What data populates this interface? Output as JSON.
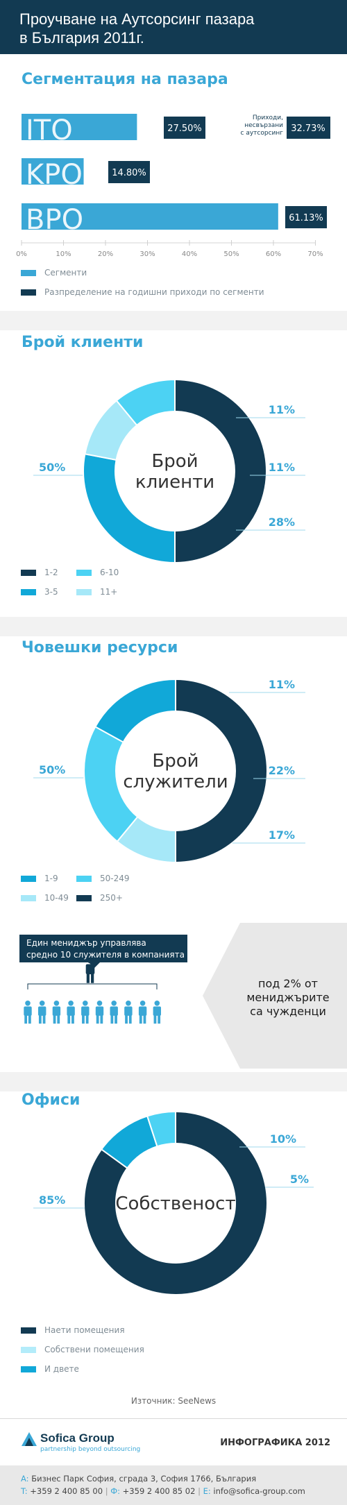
{
  "header": {
    "title_line1": "Проучване на Аутсорсинг пазара",
    "title_line2": "в България 2011г."
  },
  "segmentation": {
    "title": "Сегментация на пазара",
    "side_note": [
      "Приходи,",
      "несвързани",
      "с аутсорсинг"
    ],
    "legend": [
      "Сегменти",
      "Разпределение на годишни приходи по сегменти"
    ]
  },
  "clients": {
    "title": "Брой клиенти",
    "center": [
      "Брой",
      "клиенти"
    ],
    "legend": [
      "1-2",
      "6-10",
      "3-5",
      "11+"
    ]
  },
  "hr": {
    "title": "Човешки ресурси",
    "center": [
      "Брой",
      "служители"
    ],
    "legend": [
      "1-9",
      "50-249",
      "10-49",
      "250+"
    ]
  },
  "managers": {
    "box_line1": "Един мениджър управлява",
    "box_line2": "средно 10 служителя в компанията",
    "foreign_line1": "под 2% от",
    "foreign_line2": "мениджърите",
    "foreign_line3": "са чужденци"
  },
  "offices": {
    "title": "Офиси",
    "center": "Собственост",
    "legend": [
      "Наети помещения",
      "Собствени помещения",
      "И двете"
    ]
  },
  "source": "Източник:  SeeNews",
  "footer": {
    "logo_name": "Sofica Group",
    "logo_tagline": "partnership beyond outsourcing",
    "infographic": "ИНФОГРАФИКА 2012",
    "addr_label": "A:",
    "address": "Бизнес Парк София, сграда 3, София 1766, България",
    "t_label": "T:",
    "phone": "+359 2 400 85 00",
    "f_label": "Ф:",
    "fax": "+359 2 400 85 02",
    "e_label": "E:",
    "email": "info@sofica-group.com"
  },
  "colors": {
    "navy": "#123a52",
    "blue": "#3aa7d6",
    "teal": "#11a8d8",
    "cyan": "#4cd2f3",
    "light": "#a6e8f8",
    "pale": "#b3ecfa"
  },
  "chart_data": [
    {
      "type": "bar",
      "orientation": "horizontal",
      "categories": [
        "ITO",
        "KPO",
        "BPO"
      ],
      "series": [
        {
          "name": "Сегменти",
          "values": [
            27.5,
            14.8,
            61.13
          ]
        },
        {
          "name": "Разпределение на годишни приходи по сегменти",
          "values": [
            27.5,
            14.8,
            61.13
          ]
        }
      ],
      "data_labels": [
        "27.50%",
        "14.80%",
        "61.13%"
      ],
      "annotation": {
        "text": "Приходи, несвързани с аутсорсинг",
        "value": 32.73,
        "label": "32.73%"
      },
      "xlim": [
        0,
        70
      ],
      "xticks": [
        "0%",
        "10%",
        "20%",
        "30%",
        "40%",
        "50%",
        "60%",
        "70%"
      ]
    },
    {
      "type": "pie",
      "title": "Брой клиенти",
      "slices": [
        {
          "label": "1-2",
          "value": 50,
          "text": "50%",
          "color": "#123a52"
        },
        {
          "label": "3-5",
          "value": 28,
          "text": "28%",
          "color": "#11a8d8"
        },
        {
          "label": "11+",
          "value": 11,
          "text": "11%",
          "color": "#a6e8f8"
        },
        {
          "label": "6-10",
          "value": 11,
          "text": "11%",
          "color": "#4cd2f3"
        }
      ]
    },
    {
      "type": "pie",
      "title": "Човешки ресурси",
      "slices": [
        {
          "label": "250+",
          "value": 50,
          "text": "50%",
          "color": "#123a52"
        },
        {
          "label": "10-49",
          "value": 11,
          "text": "11%",
          "color": "#a6e8f8"
        },
        {
          "label": "50-249",
          "value": 22,
          "text": "22%",
          "color": "#4cd2f3"
        },
        {
          "label": "1-9",
          "value": 17,
          "text": "17%",
          "color": "#11a8d8"
        }
      ]
    },
    {
      "type": "pie",
      "title": "Офиси",
      "slices": [
        {
          "label": "Наети помещения",
          "value": 85,
          "text": "85%",
          "color": "#123a52"
        },
        {
          "label": "И двете",
          "value": 10,
          "text": "10%",
          "color": "#11a8d8"
        },
        {
          "label": "Собствени помещения",
          "value": 5,
          "text": "5%",
          "color": "#4cd2f3"
        }
      ]
    }
  ]
}
